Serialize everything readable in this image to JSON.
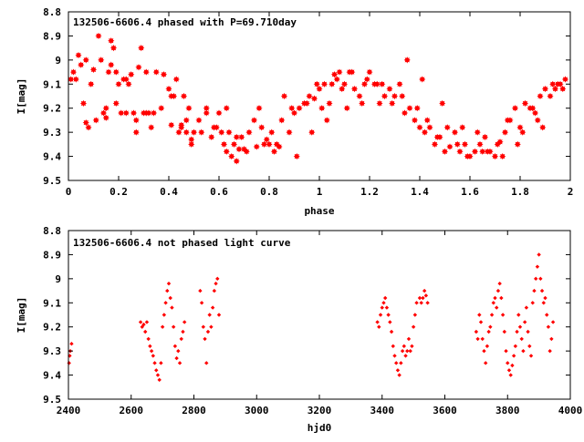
{
  "chart_data": [
    {
      "type": "scatter",
      "title": "132506-6606.4 phased with P=69.710day",
      "xlabel": "phase",
      "ylabel": "I[mag]",
      "xlim": [
        0,
        2
      ],
      "ylim": [
        8.8,
        9.5
      ],
      "y_inverted": true,
      "x_ticks": [
        "0",
        "0.2",
        "0.4",
        "0.6",
        "0.8",
        "1",
        "1.2",
        "1.4",
        "1.6",
        "1.8",
        "2"
      ],
      "y_ticks": [
        "8.8",
        "8.9",
        "9",
        "9.1",
        "9.2",
        "9.3",
        "9.4",
        "9.5"
      ],
      "marker_color": "#ff0000",
      "marker": "filled-star",
      "series": [
        {
          "x": [
            0.01,
            0.02,
            0.04,
            0.05,
            0.06,
            0.07,
            0.08,
            0.1,
            0.12,
            0.13,
            0.14,
            0.15,
            0.16,
            0.17,
            0.18,
            0.19,
            0.2,
            0.21,
            0.22,
            0.23,
            0.24,
            0.25,
            0.26,
            0.27,
            0.28,
            0.3,
            0.31,
            0.32,
            0.33,
            0.34,
            0.35,
            0.38,
            0.4,
            0.41,
            0.42,
            0.43,
            0.44,
            0.45,
            0.46,
            0.47,
            0.48,
            0.49,
            0.5,
            0.52,
            0.55,
            0.57,
            0.58,
            0.6,
            0.62,
            0.63,
            0.64,
            0.65,
            0.66,
            0.67,
            0.68,
            0.7,
            0.72,
            0.74,
            0.76,
            0.78,
            0.79,
            0.8,
            0.82,
            0.84,
            0.86,
            0.88,
            0.9,
            0.92,
            0.94,
            0.96,
            0.98,
            1.0,
            1.01,
            1.02,
            1.04,
            1.06,
            1.07,
            1.08,
            1.1,
            1.12,
            1.14,
            1.16,
            1.18,
            1.2,
            1.22,
            1.24,
            1.26,
            1.28,
            1.3,
            1.32,
            1.34,
            1.36,
            1.38,
            1.4,
            1.42,
            1.44,
            1.46,
            1.48,
            1.5,
            1.52,
            1.54,
            1.56,
            1.58,
            1.6,
            1.62,
            1.64,
            1.66,
            1.68,
            1.7,
            1.72,
            1.74,
            1.76,
            1.78,
            1.8,
            1.82,
            1.84,
            1.86,
            1.88,
            1.9,
            1.92,
            1.94,
            1.96,
            1.98,
            0.07,
            0.11,
            0.15,
            0.19,
            0.23,
            0.27,
            0.31,
            0.41,
            0.45,
            0.49,
            0.53,
            0.59,
            0.63,
            0.67,
            0.71,
            0.75,
            0.81,
            0.85,
            0.89,
            0.95,
            0.99,
            1.05,
            1.09,
            1.13,
            1.19,
            1.23,
            1.29,
            1.35,
            1.39,
            1.43,
            1.47,
            1.51,
            1.55,
            1.59,
            1.63,
            1.67,
            1.71,
            1.75,
            1.81,
            1.85,
            1.89,
            1.93,
            1.97,
            0.03,
            0.09,
            0.17,
            0.29,
            0.37,
            0.47,
            0.55,
            0.61,
            0.69,
            0.77,
            0.83,
            0.91,
            0.97,
            1.03,
            1.11,
            1.17,
            1.25,
            1.33,
            1.41,
            1.49,
            1.57,
            1.65,
            1.73,
            1.79,
            1.87,
            1.95
          ],
          "y": [
            9.08,
            9.05,
            8.98,
            9.02,
            9.18,
            9.26,
            9.28,
            9.04,
            8.9,
            9.0,
            9.22,
            9.24,
            9.05,
            8.92,
            8.95,
            9.05,
            9.1,
            9.22,
            9.08,
            9.22,
            9.1,
            9.06,
            9.22,
            9.3,
            9.03,
            9.22,
            9.05,
            9.22,
            9.28,
            9.22,
            9.05,
            9.06,
            9.12,
            9.27,
            9.15,
            9.08,
            9.3,
            9.27,
            9.15,
            9.25,
            9.2,
            9.33,
            9.3,
            9.25,
            9.2,
            9.32,
            9.28,
            9.22,
            9.35,
            9.38,
            9.3,
            9.4,
            9.35,
            9.42,
            9.37,
            9.37,
            9.3,
            9.25,
            9.2,
            9.35,
            9.33,
            9.35,
            9.38,
            9.36,
            9.15,
            9.3,
            9.22,
            9.2,
            9.18,
            9.15,
            9.16,
            9.12,
            9.2,
            9.1,
            9.18,
            9.06,
            9.08,
            9.05,
            9.1,
            9.05,
            9.12,
            9.15,
            9.1,
            9.05,
            9.1,
            9.18,
            9.15,
            9.12,
            9.15,
            9.1,
            9.22,
            9.2,
            9.25,
            9.28,
            9.3,
            9.28,
            9.35,
            9.32,
            9.38,
            9.36,
            9.3,
            9.38,
            9.35,
            9.4,
            9.38,
            9.35,
            9.32,
            9.38,
            9.4,
            9.34,
            9.3,
            9.25,
            9.2,
            9.28,
            9.18,
            9.2,
            9.22,
            9.15,
            9.12,
            9.15,
            9.12,
            9.1,
            9.08,
            9.0,
            9.25,
            9.2,
            9.18,
            9.08,
            9.25,
            9.22,
            9.15,
            9.28,
            9.35,
            9.3,
            9.28,
            9.2,
            9.32,
            9.38,
            9.36,
            9.3,
            9.25,
            9.2,
            9.18,
            9.1,
            9.1,
            9.12,
            9.05,
            9.08,
            9.1,
            9.18,
            9.0,
            9.2,
            9.25,
            9.32,
            9.28,
            9.35,
            9.4,
            9.3,
            9.38,
            9.35,
            9.25,
            9.3,
            9.2,
            9.28,
            9.1,
            9.12,
            9.08,
            9.1,
            9.02,
            8.95,
            9.2,
            9.3,
            9.22,
            9.3,
            9.32,
            9.28,
            9.35,
            9.4,
            9.3,
            9.25,
            9.2,
            9.18,
            9.1,
            9.15,
            9.08,
            9.18,
            9.28,
            9.38,
            9.4,
            9.35,
            9.25,
            9.1
          ]
        }
      ]
    },
    {
      "type": "scatter",
      "title": "132506-6606.4 not phased light curve",
      "xlabel": "hjd0",
      "ylabel": "I[mag]",
      "xlim": [
        2400,
        4000
      ],
      "ylim": [
        8.8,
        9.5
      ],
      "y_inverted": true,
      "x_ticks": [
        "2400",
        "2600",
        "2800",
        "3000",
        "3200",
        "3400",
        "3600",
        "3800",
        "4000"
      ],
      "y_ticks": [
        "8.8",
        "8.9",
        "9",
        "9.1",
        "9.2",
        "9.3",
        "9.4",
        "9.5"
      ],
      "marker_color": "#ff0000",
      "marker": "filled-diamond",
      "series": [
        {
          "x": [
            2402,
            2404,
            2406,
            2410,
            2630,
            2635,
            2640,
            2645,
            2650,
            2655,
            2660,
            2665,
            2670,
            2675,
            2680,
            2685,
            2690,
            2695,
            2700,
            2705,
            2710,
            2715,
            2720,
            2725,
            2730,
            2735,
            2740,
            2745,
            2750,
            2755,
            2760,
            2765,
            2770,
            2820,
            2825,
            2830,
            2835,
            2840,
            2845,
            2850,
            2855,
            2860,
            2865,
            2870,
            2875,
            2880,
            3385,
            3390,
            3395,
            3400,
            3405,
            3410,
            3415,
            3420,
            3425,
            3430,
            3435,
            3440,
            3445,
            3450,
            3455,
            3460,
            3465,
            3470,
            3475,
            3480,
            3485,
            3490,
            3495,
            3500,
            3505,
            3510,
            3520,
            3525,
            3530,
            3535,
            3540,
            3545,
            3700,
            3705,
            3710,
            3715,
            3720,
            3725,
            3730,
            3735,
            3740,
            3745,
            3750,
            3755,
            3760,
            3765,
            3770,
            3775,
            3780,
            3785,
            3790,
            3795,
            3800,
            3805,
            3810,
            3815,
            3820,
            3825,
            3830,
            3835,
            3840,
            3845,
            3850,
            3855,
            3860,
            3865,
            3870,
            3875,
            3880,
            3885,
            3890,
            3895,
            3900,
            3905,
            3910,
            3915,
            3920,
            3925,
            3930,
            3935,
            3940,
            3945
          ],
          "y": [
            9.35,
            9.32,
            9.3,
            9.27,
            9.18,
            9.2,
            9.19,
            9.22,
            9.18,
            9.25,
            9.28,
            9.3,
            9.32,
            9.35,
            9.38,
            9.4,
            9.42,
            9.35,
            9.2,
            9.15,
            9.1,
            9.05,
            9.02,
            9.08,
            9.12,
            9.2,
            9.28,
            9.33,
            9.3,
            9.35,
            9.25,
            9.22,
            9.18,
            9.05,
            9.1,
            9.2,
            9.25,
            9.35,
            9.22,
            9.15,
            9.2,
            9.12,
            9.05,
            9.02,
            9.0,
            9.15,
            9.18,
            9.2,
            9.15,
            9.12,
            9.1,
            9.08,
            9.12,
            9.15,
            9.18,
            9.22,
            9.28,
            9.32,
            9.35,
            9.38,
            9.4,
            9.35,
            9.3,
            9.28,
            9.32,
            9.3,
            9.25,
            9.3,
            9.28,
            9.2,
            9.15,
            9.1,
            9.08,
            9.1,
            9.08,
            9.05,
            9.07,
            9.1,
            9.22,
            9.25,
            9.15,
            9.18,
            9.25,
            9.3,
            9.35,
            9.28,
            9.22,
            9.2,
            9.15,
            9.1,
            9.08,
            9.12,
            9.05,
            9.02,
            9.08,
            9.15,
            9.22,
            9.3,
            9.35,
            9.38,
            9.4,
            9.36,
            9.32,
            9.28,
            9.22,
            9.15,
            9.2,
            9.25,
            9.3,
            9.18,
            9.12,
            9.22,
            9.28,
            9.32,
            9.1,
            9.05,
            9.0,
            8.95,
            8.9,
            9.0,
            9.05,
            9.1,
            9.08,
            9.15,
            9.2,
            9.3,
            9.25,
            9.18
          ]
        }
      ]
    }
  ]
}
